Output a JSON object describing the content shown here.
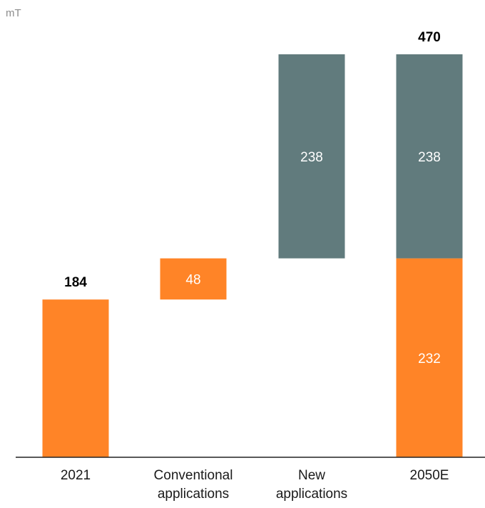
{
  "chart_data": {
    "type": "bar",
    "unit_label": "mT",
    "categories": [
      "2021",
      "Conventional\napplications",
      "New\napplications",
      "2050E"
    ],
    "series": [
      {
        "values": [
          184,
          48,
          0,
          232
        ],
        "color": "#FF8427"
      },
      {
        "values": [
          0,
          0,
          238,
          238
        ],
        "color": "#617B7D"
      }
    ],
    "bars": [
      {
        "category": "2021",
        "base": 0,
        "value": 184,
        "color": "#FF8427",
        "label": "",
        "total_label": "184"
      },
      {
        "category": "Conventional\napplications",
        "base": 184,
        "value": 48,
        "color": "#FF8427",
        "label": "48",
        "total_label": ""
      },
      {
        "category": "New\napplications",
        "base": 232,
        "value": 238,
        "color": "#617B7D",
        "label": "238",
        "total_label": ""
      },
      {
        "category": "2050E",
        "base": 0,
        "value": 232,
        "color": "#FF8427",
        "label": "232",
        "total_label": ""
      },
      {
        "category": "2050E",
        "base": 232,
        "value": 238,
        "color": "#617B7D",
        "label": "238",
        "total_label": "470"
      }
    ],
    "ylim": [
      0,
      470
    ],
    "grid": false,
    "colors": {
      "conventional": "#FF8427",
      "new": "#617B7D",
      "axis": "#222222"
    }
  }
}
